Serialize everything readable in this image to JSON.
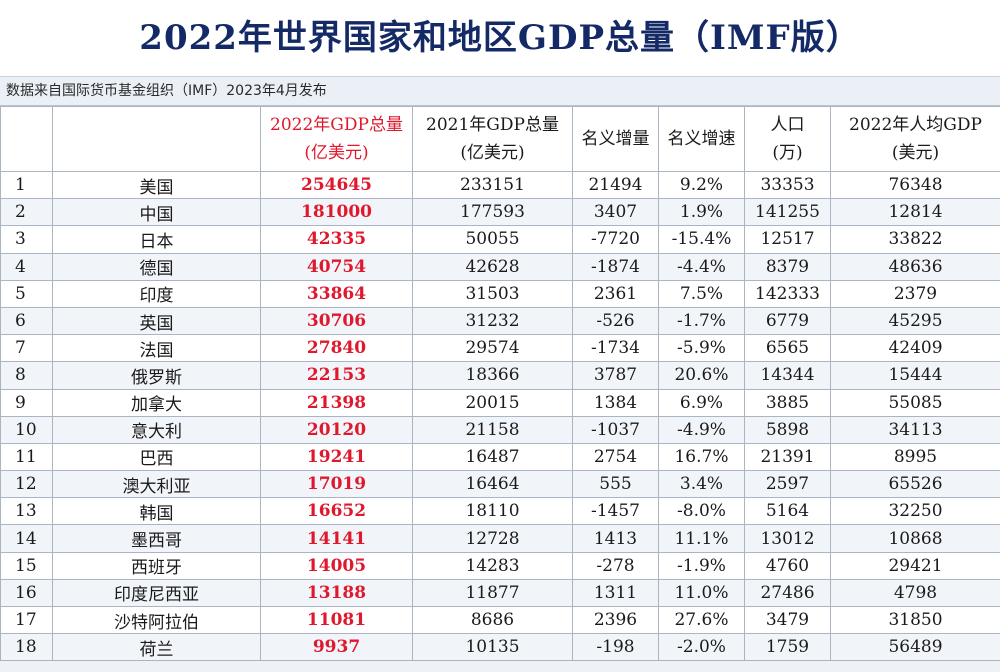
{
  "title": "2022年世界国家和地区GDP总量（IMF版）",
  "source": "数据来自国际货币基金组织（IMF）2023年4月发布",
  "columns": {
    "rank": "",
    "name": "",
    "gdp2022_l1": "2022年GDP总量",
    "gdp2022_l2": "(亿美元)",
    "gdp2021_l1": "2021年GDP总量",
    "gdp2021_l2": "(亿美元)",
    "increase": "名义增量",
    "growth": "名义增速",
    "pop_l1": "人口",
    "pop_l2": "(万)",
    "per_capita_l1": "2022年人均GDP",
    "per_capita_l2": "(美元)"
  },
  "rows": [
    {
      "rank": "1",
      "name": "美国",
      "gdp2022": "254645",
      "gdp2021": "233151",
      "increase": "21494",
      "growth": "9.2%",
      "pop": "33353",
      "per_capita": "76348"
    },
    {
      "rank": "2",
      "name": "中国",
      "gdp2022": "181000",
      "gdp2021": "177593",
      "increase": "3407",
      "growth": "1.9%",
      "pop": "141255",
      "per_capita": "12814"
    },
    {
      "rank": "3",
      "name": "日本",
      "gdp2022": "42335",
      "gdp2021": "50055",
      "increase": "-7720",
      "growth": "-15.4%",
      "pop": "12517",
      "per_capita": "33822"
    },
    {
      "rank": "4",
      "name": "德国",
      "gdp2022": "40754",
      "gdp2021": "42628",
      "increase": "-1874",
      "growth": "-4.4%",
      "pop": "8379",
      "per_capita": "48636"
    },
    {
      "rank": "5",
      "name": "印度",
      "gdp2022": "33864",
      "gdp2021": "31503",
      "increase": "2361",
      "growth": "7.5%",
      "pop": "142333",
      "per_capita": "2379"
    },
    {
      "rank": "6",
      "name": "英国",
      "gdp2022": "30706",
      "gdp2021": "31232",
      "increase": "-526",
      "growth": "-1.7%",
      "pop": "6779",
      "per_capita": "45295"
    },
    {
      "rank": "7",
      "name": "法国",
      "gdp2022": "27840",
      "gdp2021": "29574",
      "increase": "-1734",
      "growth": "-5.9%",
      "pop": "6565",
      "per_capita": "42409"
    },
    {
      "rank": "8",
      "name": "俄罗斯",
      "gdp2022": "22153",
      "gdp2021": "18366",
      "increase": "3787",
      "growth": "20.6%",
      "pop": "14344",
      "per_capita": "15444"
    },
    {
      "rank": "9",
      "name": "加拿大",
      "gdp2022": "21398",
      "gdp2021": "20015",
      "increase": "1384",
      "growth": "6.9%",
      "pop": "3885",
      "per_capita": "55085"
    },
    {
      "rank": "10",
      "name": "意大利",
      "gdp2022": "20120",
      "gdp2021": "21158",
      "increase": "-1037",
      "growth": "-4.9%",
      "pop": "5898",
      "per_capita": "34113"
    },
    {
      "rank": "11",
      "name": "巴西",
      "gdp2022": "19241",
      "gdp2021": "16487",
      "increase": "2754",
      "growth": "16.7%",
      "pop": "21391",
      "per_capita": "8995"
    },
    {
      "rank": "12",
      "name": "澳大利亚",
      "gdp2022": "17019",
      "gdp2021": "16464",
      "increase": "555",
      "growth": "3.4%",
      "pop": "2597",
      "per_capita": "65526"
    },
    {
      "rank": "13",
      "name": "韩国",
      "gdp2022": "16652",
      "gdp2021": "18110",
      "increase": "-1457",
      "growth": "-8.0%",
      "pop": "5164",
      "per_capita": "32250"
    },
    {
      "rank": "14",
      "name": "墨西哥",
      "gdp2022": "14141",
      "gdp2021": "12728",
      "increase": "1413",
      "growth": "11.1%",
      "pop": "13012",
      "per_capita": "10868"
    },
    {
      "rank": "15",
      "name": "西班牙",
      "gdp2022": "14005",
      "gdp2021": "14283",
      "increase": "-278",
      "growth": "-1.9%",
      "pop": "4760",
      "per_capita": "29421"
    },
    {
      "rank": "16",
      "name": "印度尼西亚",
      "gdp2022": "13188",
      "gdp2021": "11877",
      "increase": "1311",
      "growth": "11.0%",
      "pop": "27486",
      "per_capita": "4798"
    },
    {
      "rank": "17",
      "name": "沙特阿拉伯",
      "gdp2022": "11081",
      "gdp2021": "8686",
      "increase": "2396",
      "growth": "27.6%",
      "pop": "3479",
      "per_capita": "31850"
    },
    {
      "rank": "18",
      "name": "荷兰",
      "gdp2022": "9937",
      "gdp2021": "10135",
      "increase": "-198",
      "growth": "-2.0%",
      "pop": "1759",
      "per_capita": "56489"
    }
  ],
  "colors": {
    "title": "#142a66",
    "highlight": "#e0182d",
    "grid": "#a9b5c1"
  }
}
